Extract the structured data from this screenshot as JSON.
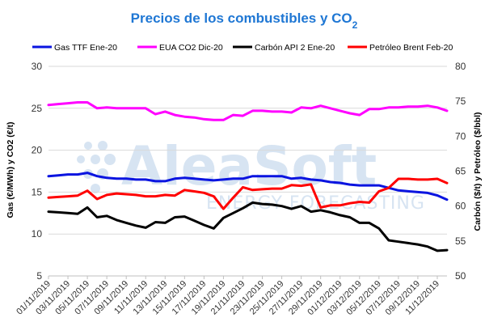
{
  "chart_data": {
    "type": "line",
    "title": "Precios de los combustibles y CO",
    "title_subscript": "2",
    "ylabel_left": "Gas (€/MWh) y CO2 (€/t)",
    "ylabel_right": "Carbón ($/t) y Petróleo ($/bbl)",
    "ylim_left": [
      5,
      30
    ],
    "ylim_right": [
      50,
      80
    ],
    "yticks_left": [
      "5",
      "10",
      "15",
      "20",
      "25",
      "30"
    ],
    "yticks_right": [
      "50",
      "55",
      "60",
      "65",
      "70",
      "75",
      "80"
    ],
    "x": [
      "01/11/2019",
      "02/11/2019",
      "03/11/2019",
      "04/11/2019",
      "05/11/2019",
      "06/11/2019",
      "07/11/2019",
      "08/11/2019",
      "09/11/2019",
      "10/11/2019",
      "11/11/2019",
      "12/11/2019",
      "13/11/2019",
      "14/11/2019",
      "15/11/2019",
      "16/11/2019",
      "17/11/2019",
      "18/11/2019",
      "19/11/2019",
      "20/11/2019",
      "21/11/2019",
      "22/11/2019",
      "23/11/2019",
      "24/11/2019",
      "25/11/2019",
      "26/11/2019",
      "27/11/2019",
      "28/11/2019",
      "29/11/2019",
      "30/11/2019",
      "01/12/2019",
      "02/12/2019",
      "03/12/2019",
      "04/12/2019",
      "05/12/2019",
      "06/12/2019",
      "07/12/2019",
      "08/12/2019",
      "09/12/2019",
      "10/12/2019",
      "11/12/2019",
      "12/12/2019"
    ],
    "xtick_labels": [
      "01/11/2019",
      "03/11/2019",
      "05/11/2019",
      "07/11/2019",
      "09/11/2019",
      "11/11/2019",
      "13/11/2019",
      "15/11/2019",
      "17/11/2019",
      "19/11/2019",
      "21/11/2019",
      "23/11/2019",
      "25/11/2019",
      "27/11/2019",
      "29/11/2019",
      "01/12/2019",
      "03/12/2019",
      "05/12/2019",
      "07/12/2019",
      "09/12/2019",
      "11/12/2019"
    ],
    "series": [
      {
        "name": "Gas TTF Ene-20",
        "axis": "left",
        "color": "#0a14e0",
        "values": [
          16.9,
          17.0,
          17.1,
          17.1,
          17.3,
          16.9,
          16.7,
          16.6,
          16.6,
          16.5,
          16.5,
          16.3,
          16.3,
          16.6,
          16.7,
          16.6,
          16.5,
          16.4,
          16.5,
          16.6,
          16.6,
          16.9,
          16.9,
          16.9,
          16.9,
          16.6,
          16.7,
          16.5,
          16.4,
          16.2,
          16.1,
          15.9,
          15.8,
          15.8,
          15.8,
          15.5,
          15.2,
          15.1,
          15.0,
          14.9,
          14.6,
          14.1
        ]
      },
      {
        "name": "EUA CO2 Dic-20",
        "axis": "left",
        "color": "#ff00ff",
        "values": [
          25.4,
          25.5,
          25.6,
          25.7,
          25.7,
          25.0,
          25.1,
          25.0,
          25.0,
          25.0,
          25.0,
          24.3,
          24.6,
          24.2,
          24.0,
          23.9,
          23.7,
          23.6,
          23.6,
          24.2,
          24.1,
          24.7,
          24.7,
          24.6,
          24.6,
          24.5,
          25.1,
          25.0,
          25.3,
          25.0,
          24.7,
          24.4,
          24.2,
          24.9,
          24.9,
          25.1,
          25.1,
          25.2,
          25.2,
          25.3,
          25.1,
          24.7
        ]
      },
      {
        "name": "Carbón API 2 Ene-20",
        "axis": "right",
        "color": "#000000",
        "values": [
          59.2,
          59.1,
          59.0,
          58.9,
          59.8,
          58.4,
          58.6,
          58.0,
          57.6,
          57.2,
          56.9,
          57.7,
          57.6,
          58.4,
          58.5,
          57.9,
          57.3,
          56.8,
          58.3,
          59.0,
          59.7,
          60.5,
          60.3,
          60.2,
          60.0,
          59.6,
          60.0,
          59.2,
          59.4,
          59.1,
          58.7,
          58.4,
          57.6,
          57.6,
          56.8,
          55.1,
          54.9,
          54.7,
          54.5,
          54.2,
          53.6,
          53.7
        ]
      },
      {
        "name": "Petróleo Brent Feb-20",
        "axis": "right",
        "color": "#ff0000",
        "values": [
          61.2,
          61.3,
          61.4,
          61.5,
          62.2,
          61.0,
          61.6,
          61.8,
          61.7,
          61.6,
          61.4,
          61.4,
          61.6,
          61.5,
          62.3,
          62.1,
          61.9,
          61.4,
          59.6,
          61.2,
          62.7,
          62.3,
          62.4,
          62.5,
          62.5,
          63.0,
          62.9,
          63.1,
          59.8,
          60.1,
          60.1,
          60.4,
          60.6,
          60.5,
          62.1,
          62.6,
          63.9,
          63.9,
          63.8,
          63.8,
          63.9,
          63.3
        ]
      }
    ],
    "grid": true,
    "legend_position": "top",
    "watermark": {
      "brand": "AleaSoft",
      "tagline": "ENERGY FORECASTING"
    }
  }
}
